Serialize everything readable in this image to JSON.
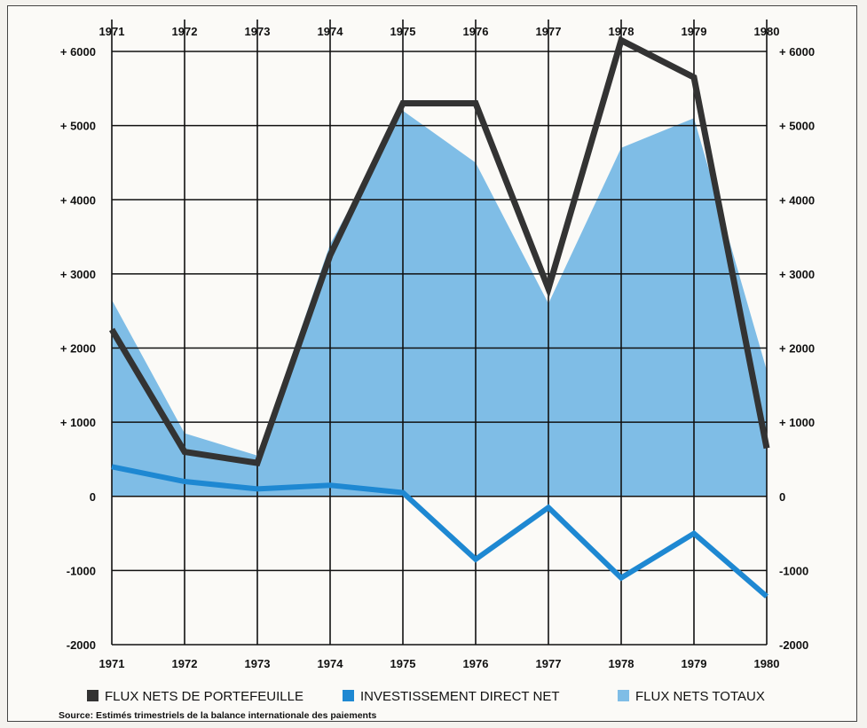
{
  "chart_data": {
    "type": "line",
    "x": [
      "1971",
      "1972",
      "1973",
      "1974",
      "1975",
      "1976",
      "1977",
      "1978",
      "1979",
      "1980"
    ],
    "x_ticks_top": [
      "1971",
      "1972",
      "1973",
      "1974",
      "1975",
      "1976",
      "1977",
      "1978",
      "1979",
      "1980"
    ],
    "x_ticks_bottom": [
      "1971",
      "1972",
      "1973",
      "1974",
      "1975",
      "1976",
      "1977",
      "1978",
      "1979",
      "1980"
    ],
    "y_ticks_left": [
      "+ 6000",
      "+ 5000",
      "+ 4000",
      "+ 3000",
      "+ 2000",
      "+ 1000",
      "0",
      "-1000",
      "-2000"
    ],
    "y_ticks_right": [
      "+ 6000",
      "+ 5000",
      "+ 4000",
      "+ 3000",
      "+ 2000",
      "+ 1000",
      "0",
      "-1000",
      "-2000"
    ],
    "ylim": [
      -2000,
      6000
    ],
    "grid": true,
    "legend_position": "bottom",
    "series": [
      {
        "name": "FLUX NETS DE PORTEFEUILLE",
        "type": "line",
        "color": "#333333",
        "values": [
          2250,
          600,
          450,
          3250,
          5300,
          5300,
          2800,
          6150,
          5650,
          650
        ]
      },
      {
        "name": "INVESTISSEMENT DIRECT NET",
        "type": "line",
        "color": "#1e88d2",
        "values": [
          400,
          200,
          100,
          150,
          50,
          -850,
          -150,
          -1100,
          -500,
          -1350
        ]
      },
      {
        "name": "FLUX NETS TOTAUX",
        "type": "area",
        "color": "#7fbde6",
        "values": [
          2650,
          850,
          550,
          3400,
          5200,
          4500,
          2600,
          4700,
          5100,
          1700
        ]
      }
    ],
    "source_note": "Source: Estimés trimestriels de la balance internationale des paiements"
  }
}
